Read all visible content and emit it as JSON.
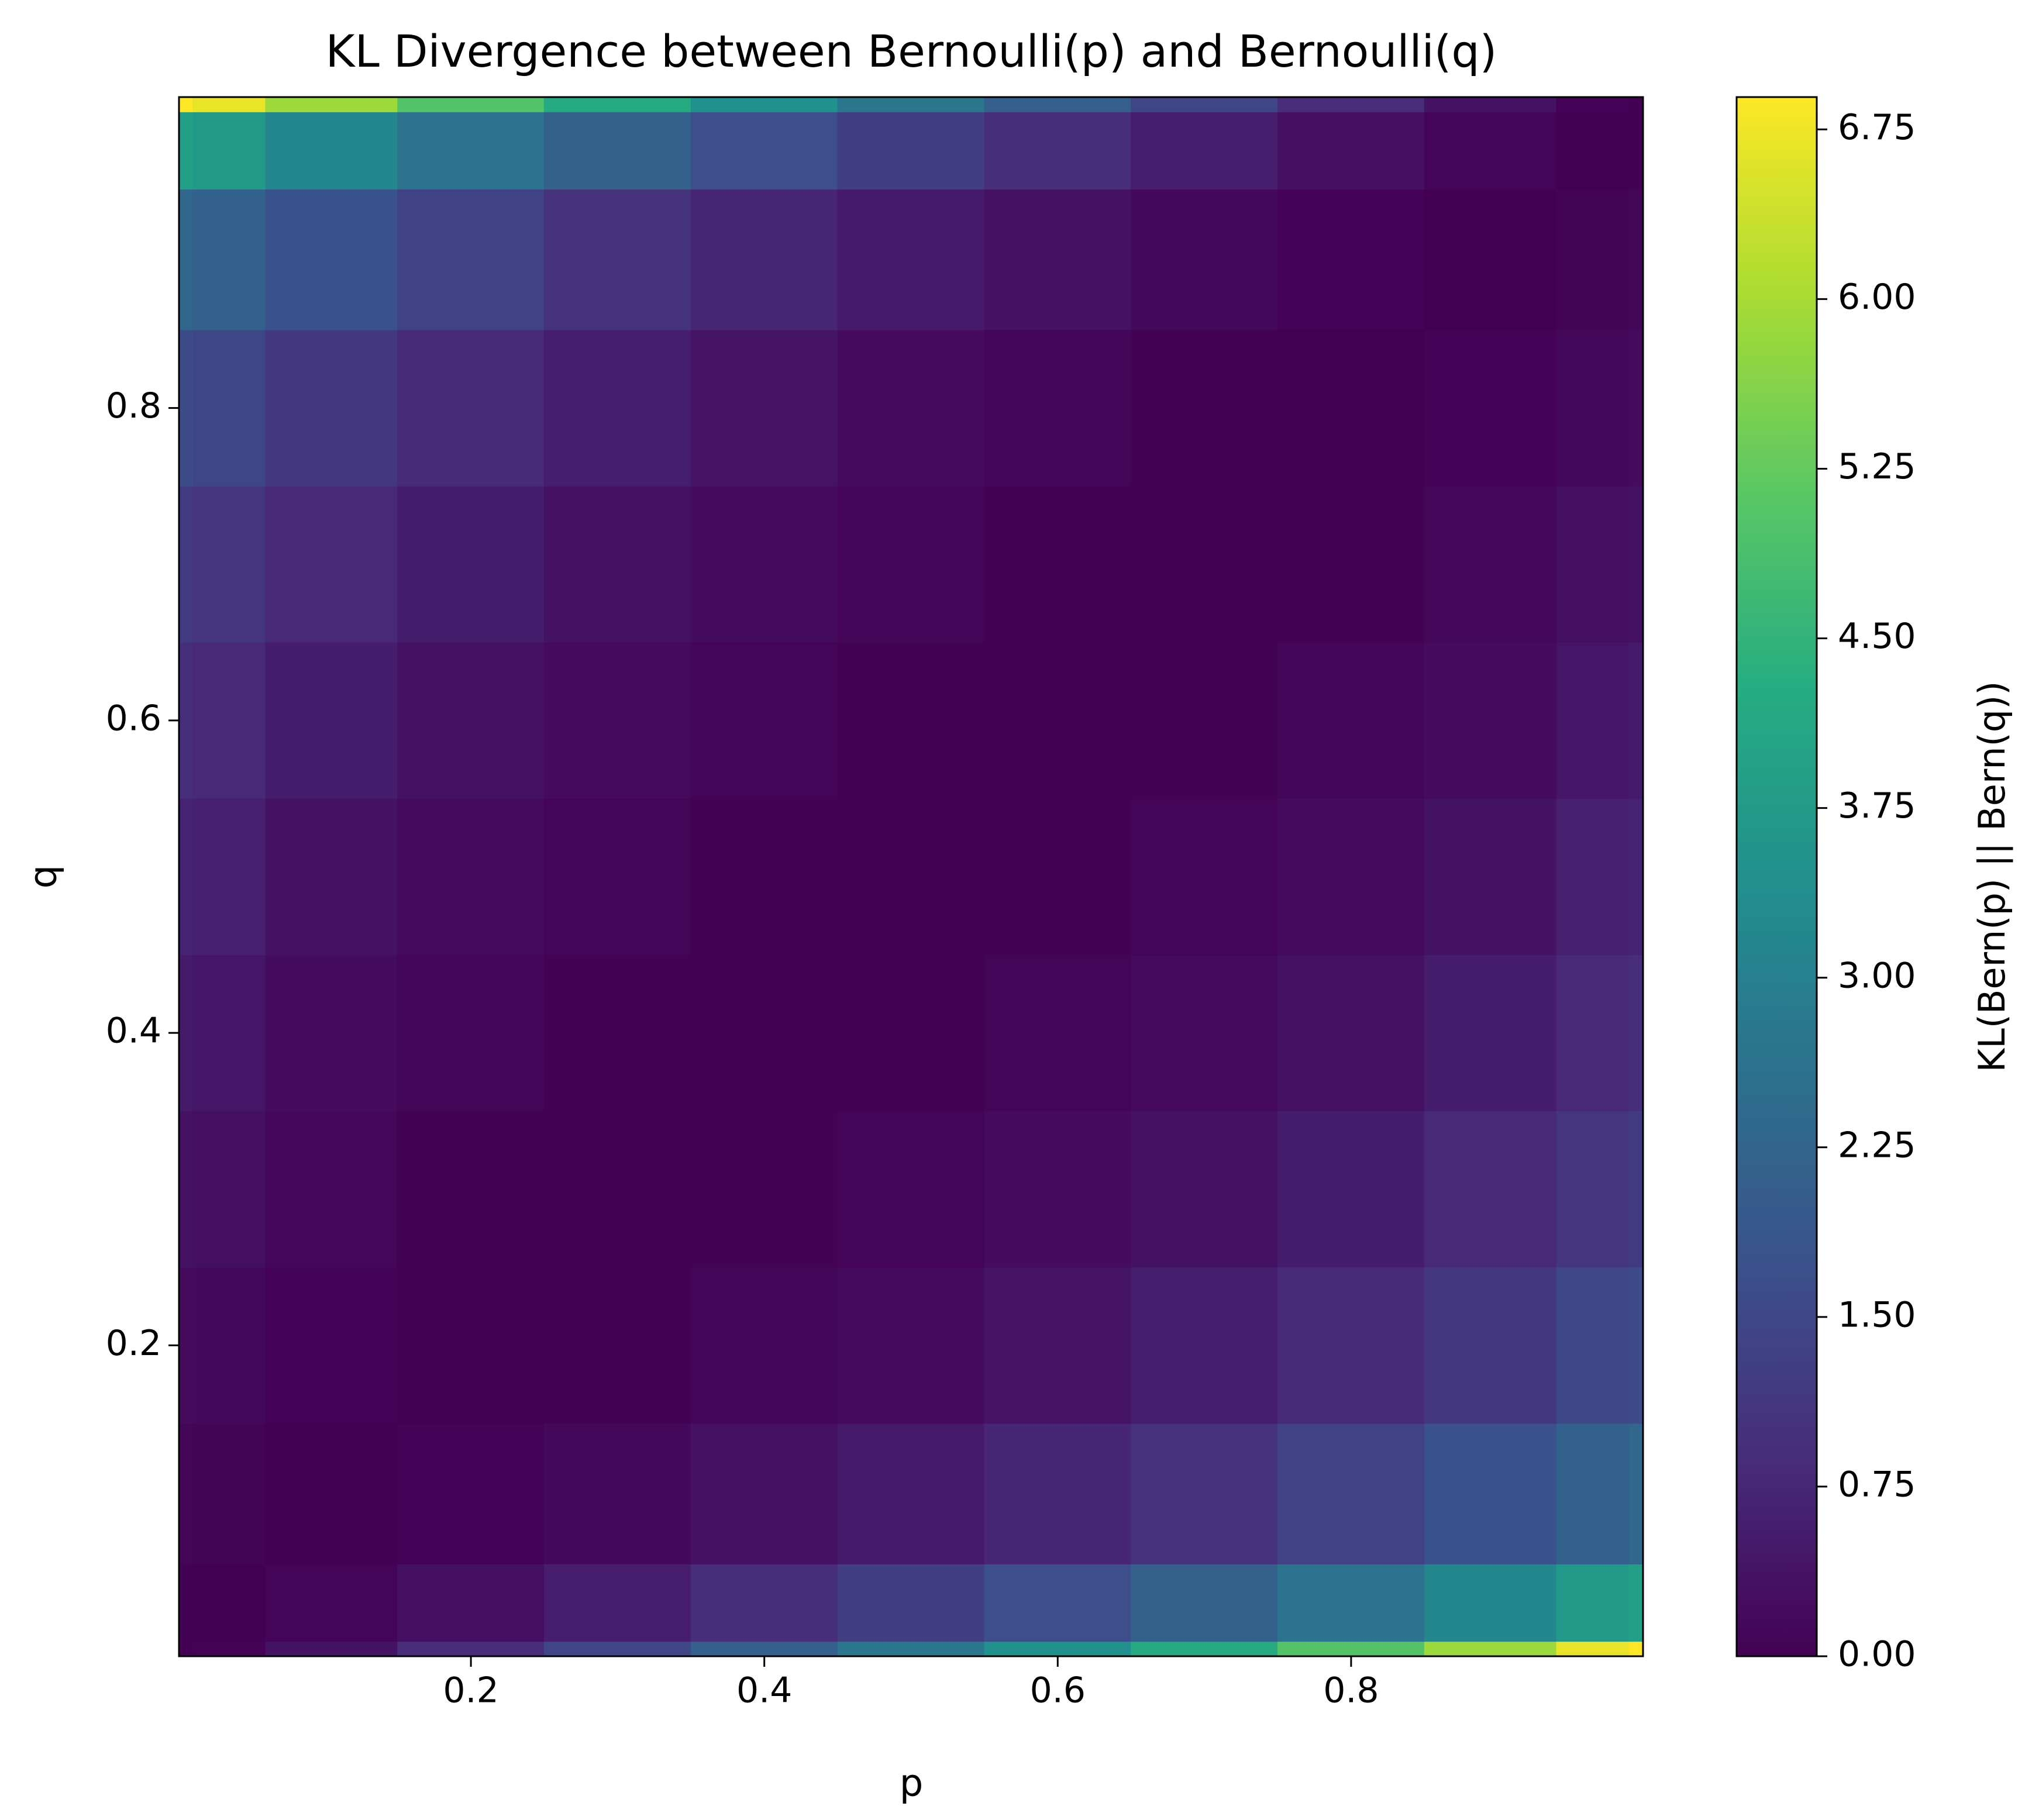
{
  "chart_data": {
    "type": "heatmap",
    "title": "KL Divergence between Bernoulli(p) and Bernoulli(q)",
    "xlabel": "p",
    "ylabel": "q",
    "colorbar_label": "KL(Bern(p) || Bern(q))",
    "x": [
      0.001,
      0.02,
      0.1,
      0.2,
      0.3,
      0.4,
      0.5,
      0.6,
      0.7,
      0.8,
      0.9,
      0.98,
      0.999
    ],
    "y": [
      0.001,
      0.02,
      0.1,
      0.2,
      0.3,
      0.4,
      0.5,
      0.6,
      0.7,
      0.8,
      0.9,
      0.98,
      0.999
    ],
    "z": [
      [
        0,
        0.0411,
        0.3666,
        0.882,
        1.4621,
        2.0907,
        2.7613,
        3.4721,
        4.2249,
        5.026,
        5.892,
        6.6717,
        6.893
      ],
      [
        0.0162,
        0,
        0.0843,
        0.2982,
        0.5768,
        0.9039,
        1.273,
        1.6823,
        2.1336,
        2.6332,
        3.1977,
        3.7362,
        3.9002
      ],
      [
        0.0997,
        0.0513,
        0,
        0.0444,
        0.1537,
        0.3113,
        0.5109,
        0.7507,
        1.0325,
        1.3628,
        1.7578,
        2.1607,
        2.2925
      ],
      [
        0.2166,
        0.1528,
        0.0366,
        0,
        0.0281,
        0.1046,
        0.2231,
        0.3819,
        0.5826,
        0.8317,
        1.1457,
        1.4837,
        1.6001
      ],
      [
        0.3496,
        0.2756,
        0.1163,
        0.0258,
        0,
        0.0226,
        0.0872,
        0.1921,
        0.3389,
        0.5341,
        0.7942,
        1.0891,
        1.1953
      ],
      [
        0.5033,
        0.4209,
        0.2263,
        0.0915,
        0.0216,
        0,
        0.0204,
        0.0811,
        0.1838,
        0.3348,
        0.5507,
        0.8102,
        0.908
      ],
      [
        0.6852,
        0.5951,
        0.368,
        0.1927,
        0.0822,
        0.0201,
        0,
        0.0201,
        0.0822,
        0.1927,
        0.368,
        0.5951,
        0.6852
      ],
      [
        0.908,
        0.8102,
        0.5507,
        0.3348,
        0.1838,
        0.0811,
        0.0204,
        0,
        0.0216,
        0.0915,
        0.2263,
        0.4209,
        0.5033
      ],
      [
        1.1953,
        1.0891,
        0.7942,
        0.5341,
        0.3389,
        0.1921,
        0.0872,
        0.0226,
        0,
        0.0258,
        0.1163,
        0.2756,
        0.3496
      ],
      [
        1.6001,
        1.4837,
        1.1457,
        0.8317,
        0.5826,
        0.3819,
        0.2231,
        0.1046,
        0.0281,
        0,
        0.0366,
        0.1528,
        0.2166
      ],
      [
        2.2925,
        2.1607,
        1.7578,
        1.3628,
        1.0325,
        0.7507,
        0.5109,
        0.3113,
        0.1537,
        0.0444,
        0,
        0.0513,
        0.0997
      ],
      [
        3.9002,
        3.7362,
        3.1977,
        2.6332,
        2.1336,
        1.6823,
        1.273,
        0.9039,
        0.5768,
        0.2982,
        0.0843,
        0,
        0.0162
      ],
      [
        6.893,
        6.6717,
        5.892,
        5.026,
        4.2249,
        3.4721,
        2.7613,
        2.0907,
        1.4621,
        0.882,
        0.3666,
        0.0411,
        0
      ]
    ],
    "xlim": [
      0.001,
      0.999
    ],
    "ylim": [
      0.001,
      0.999
    ],
    "xticks": [
      0.2,
      0.4,
      0.6,
      0.8
    ],
    "yticks": [
      0.2,
      0.4,
      0.6,
      0.8
    ],
    "zlim": [
      0,
      6.893
    ],
    "colorbar_ticks": [
      {
        "value": 0,
        "label": "0.00"
      },
      {
        "value": 0.75,
        "label": "0.75"
      },
      {
        "value": 1.5,
        "label": "1.50"
      },
      {
        "value": 2.25,
        "label": "2.25"
      },
      {
        "value": 3,
        "label": "3.00"
      },
      {
        "value": 3.75,
        "label": "3.75"
      },
      {
        "value": 4.5,
        "label": "4.50"
      },
      {
        "value": 5.25,
        "label": "5.25"
      },
      {
        "value": 6,
        "label": "6.00"
      },
      {
        "value": 6.75,
        "label": "6.75"
      }
    ],
    "colormap": [
      "#440154",
      "#472c7a",
      "#3b518b",
      "#2c718e",
      "#21908d",
      "#27ad81",
      "#5cc863",
      "#aadc32",
      "#fde725"
    ]
  }
}
